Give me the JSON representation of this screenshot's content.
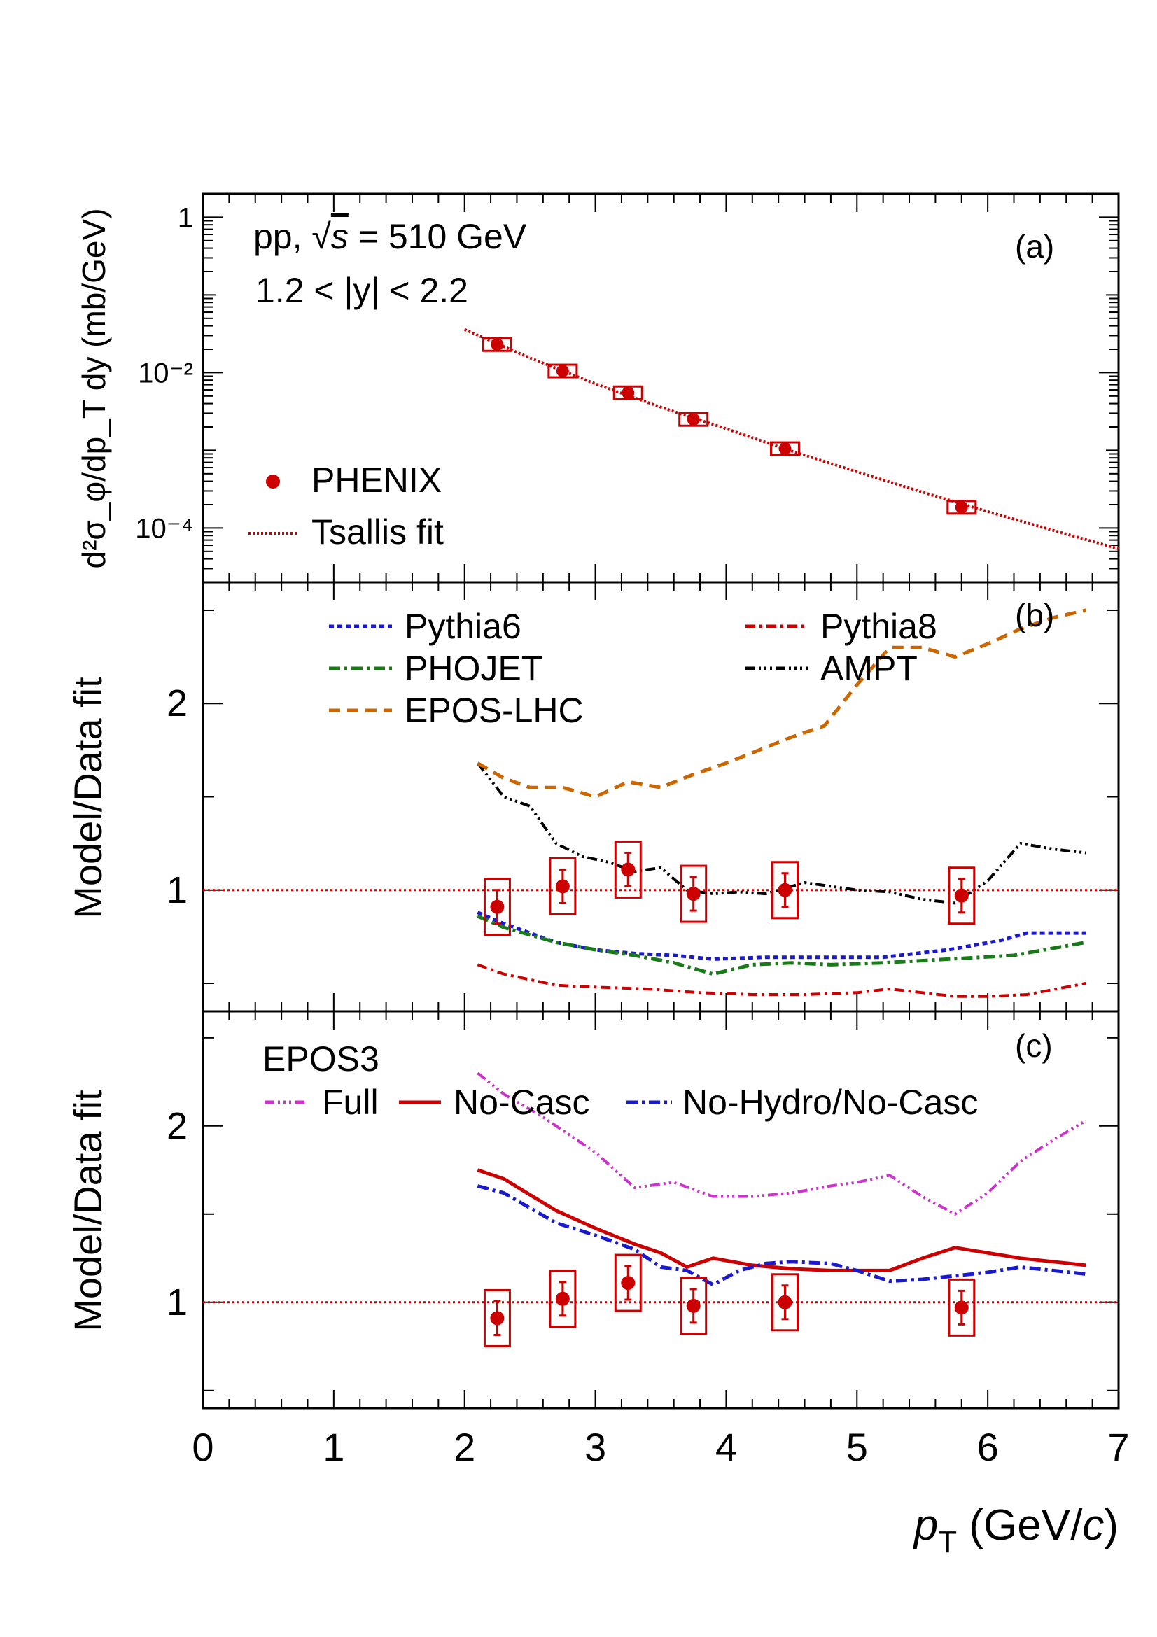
{
  "figure": {
    "x_axis": {
      "label_main": "p",
      "label_sub": "T",
      "label_unit_open": " (GeV/",
      "label_unit_c": "c",
      "label_unit_close": ")",
      "ticks": [
        "0",
        "1",
        "2",
        "3",
        "4",
        "5",
        "6",
        "7"
      ]
    },
    "panel_a": {
      "tag": "(a)",
      "text_line1_pre": "pp, ",
      "text_line1_sqrt": "√",
      "text_line1_s": "s",
      "text_line1_post": " = 510 GeV",
      "text_line2": "1.2 < |y| < 2.2",
      "ylabel": "d²σ_φ/dp_T dy (mb/GeV)",
      "y_ticks": [
        "1",
        "10⁻²",
        "10⁻⁴"
      ],
      "legend": {
        "phenix": "PHENIX",
        "tsallis": "Tsallis fit"
      }
    },
    "panel_b": {
      "tag": "(b)",
      "ylabel": "Model/Data fit",
      "y_ticks": [
        "1",
        "2"
      ],
      "legend": {
        "pythia6": "Pythia6",
        "pythia8": "Pythia8",
        "phojet": "PHOJET",
        "ampt": "AMPT",
        "eposlhc": "EPOS-LHC"
      }
    },
    "panel_c": {
      "tag": "(c)",
      "ylabel": "Model/Data fit",
      "y_ticks": [
        "1",
        "2"
      ],
      "legend": {
        "title": "EPOS3",
        "full": "Full",
        "nocasc": "No-Casc",
        "nohydro": "No-Hydro/No-Casc"
      }
    }
  },
  "chart_data": [
    {
      "type": "scatter",
      "panel": "a",
      "xlim": [
        0,
        7
      ],
      "ylim": [
        2e-05,
        2
      ],
      "y_scale": "log",
      "series": [
        {
          "name": "PHENIX",
          "color": "#cc0000",
          "x": [
            2.25,
            2.75,
            3.25,
            3.75,
            4.45,
            5.8
          ],
          "y": [
            0.023,
            0.0105,
            0.0055,
            0.0025,
            0.00105,
            0.000185
          ]
        },
        {
          "name": "Tsallis fit",
          "color": "#cc0000",
          "style": "dotted",
          "x": [
            2.0,
            2.5,
            3.0,
            3.5,
            4.0,
            4.5,
            5.0,
            5.5,
            6.0,
            6.5,
            7.0
          ],
          "y": [
            0.036,
            0.0155,
            0.0072,
            0.0036,
            0.0019,
            0.00098,
            0.00053,
            0.00029,
            0.000163,
            9.35e-05,
            5.4e-05
          ]
        }
      ]
    },
    {
      "type": "line",
      "panel": "b",
      "xlim": [
        0,
        7
      ],
      "ylim": [
        0.35,
        2.65
      ],
      "data_points": {
        "x": [
          2.25,
          2.75,
          3.25,
          3.75,
          4.45,
          5.8
        ],
        "y": [
          0.91,
          1.02,
          1.11,
          0.98,
          1.0,
          0.97
        ]
      },
      "series": [
        {
          "name": "Pythia6",
          "color": "#1a1acc",
          "x": [
            2.1,
            2.3,
            2.7,
            3.0,
            3.3,
            3.6,
            3.9,
            4.3,
            4.7,
            5.2,
            5.7,
            6.1,
            6.3,
            6.75
          ],
          "y": [
            0.88,
            0.82,
            0.72,
            0.68,
            0.66,
            0.65,
            0.63,
            0.64,
            0.64,
            0.64,
            0.68,
            0.73,
            0.77,
            0.77
          ]
        },
        {
          "name": "Pythia8",
          "color": "#cc0000",
          "x": [
            2.1,
            2.3,
            2.7,
            3.0,
            3.4,
            3.8,
            4.2,
            4.6,
            5.0,
            5.25,
            5.5,
            5.75,
            6.0,
            6.3,
            6.75
          ],
          "y": [
            0.6,
            0.55,
            0.49,
            0.48,
            0.47,
            0.45,
            0.44,
            0.44,
            0.45,
            0.47,
            0.45,
            0.43,
            0.43,
            0.44,
            0.5
          ]
        },
        {
          "name": "PHOJET",
          "color": "#1a7a1a",
          "x": [
            2.1,
            2.3,
            2.7,
            3.0,
            3.3,
            3.6,
            3.9,
            4.2,
            4.5,
            4.8,
            5.2,
            5.7,
            6.2,
            6.75
          ],
          "y": [
            0.86,
            0.8,
            0.72,
            0.68,
            0.65,
            0.61,
            0.55,
            0.6,
            0.61,
            0.6,
            0.61,
            0.63,
            0.65,
            0.72
          ]
        },
        {
          "name": "AMPT",
          "color": "#000000",
          "x": [
            2.1,
            2.3,
            2.5,
            2.7,
            2.9,
            3.1,
            3.3,
            3.5,
            3.7,
            3.9,
            4.1,
            4.3,
            4.6,
            4.8,
            5.0,
            5.25,
            5.5,
            5.75,
            6.0,
            6.25,
            6.5,
            6.75
          ],
          "y": [
            1.68,
            1.5,
            1.45,
            1.25,
            1.18,
            1.15,
            1.1,
            1.12,
            1.0,
            0.98,
            0.99,
            0.98,
            1.04,
            1.02,
            1.0,
            0.99,
            0.95,
            0.93,
            1.05,
            1.25,
            1.22,
            1.2
          ]
        },
        {
          "name": "EPOS-LHC",
          "color": "#cc6600",
          "x": [
            2.1,
            2.3,
            2.5,
            2.75,
            3.0,
            3.25,
            3.5,
            3.75,
            4.0,
            4.25,
            4.5,
            4.75,
            5.0,
            5.25,
            5.5,
            5.75,
            6.0,
            6.25,
            6.5,
            6.75
          ],
          "y": [
            1.68,
            1.6,
            1.55,
            1.55,
            1.5,
            1.58,
            1.55,
            1.62,
            1.68,
            1.75,
            1.82,
            1.88,
            2.1,
            2.3,
            2.3,
            2.25,
            2.32,
            2.4,
            2.46,
            2.5
          ]
        }
      ]
    },
    {
      "type": "line",
      "panel": "c",
      "xlim": [
        0,
        7
      ],
      "ylim": [
        0.4,
        2.65
      ],
      "data_points": {
        "x": [
          2.25,
          2.75,
          3.25,
          3.75,
          4.45,
          5.8
        ],
        "y": [
          0.91,
          1.02,
          1.11,
          0.98,
          1.0,
          0.97
        ]
      },
      "series": [
        {
          "name": "Full",
          "color": "#cc33cc",
          "x": [
            2.1,
            2.3,
            2.6,
            3.0,
            3.3,
            3.6,
            3.9,
            4.2,
            4.5,
            4.8,
            5.0,
            5.25,
            5.5,
            5.75,
            6.0,
            6.25,
            6.5,
            6.75
          ],
          "y": [
            2.3,
            2.18,
            2.05,
            1.85,
            1.65,
            1.68,
            1.6,
            1.6,
            1.62,
            1.66,
            1.68,
            1.72,
            1.6,
            1.5,
            1.62,
            1.8,
            1.92,
            2.03
          ]
        },
        {
          "name": "No-Casc",
          "color": "#cc0000",
          "x": [
            2.1,
            2.3,
            2.7,
            3.0,
            3.3,
            3.5,
            3.7,
            3.9,
            4.2,
            4.5,
            4.8,
            5.0,
            5.25,
            5.5,
            5.75,
            6.0,
            6.25,
            6.5,
            6.75
          ],
          "y": [
            1.75,
            1.7,
            1.52,
            1.42,
            1.33,
            1.28,
            1.2,
            1.25,
            1.21,
            1.19,
            1.18,
            1.18,
            1.18,
            1.25,
            1.31,
            1.28,
            1.25,
            1.23,
            1.21
          ]
        },
        {
          "name": "No-Hydro/No-Casc",
          "color": "#1a1acc",
          "x": [
            2.1,
            2.3,
            2.7,
            3.0,
            3.3,
            3.5,
            3.7,
            3.9,
            4.1,
            4.3,
            4.5,
            4.8,
            5.0,
            5.25,
            5.5,
            5.75,
            6.0,
            6.25,
            6.5,
            6.75
          ],
          "y": [
            1.66,
            1.62,
            1.45,
            1.38,
            1.3,
            1.2,
            1.18,
            1.1,
            1.18,
            1.22,
            1.23,
            1.22,
            1.18,
            1.12,
            1.13,
            1.15,
            1.17,
            1.2,
            1.18,
            1.16
          ]
        }
      ]
    }
  ]
}
